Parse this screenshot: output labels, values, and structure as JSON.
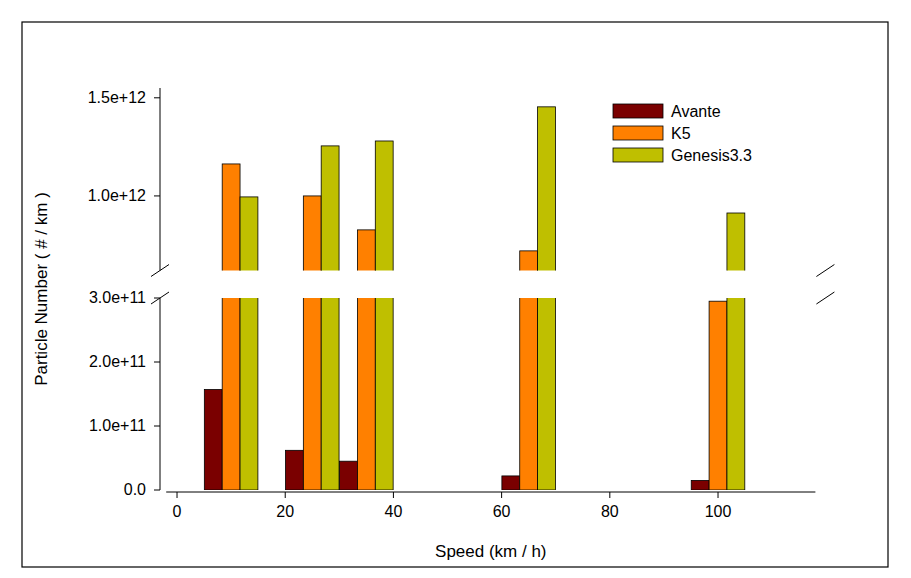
{
  "chart_data": {
    "type": "bar",
    "x_label": "Speed (km / h)",
    "y_label": "Particle Number ( # / km )",
    "x": [
      10,
      25,
      35,
      65,
      100
    ],
    "series": [
      {
        "name": "Avante",
        "color": "#7a0000",
        "values": [
          157000000000.0,
          62000000000.0,
          45000000000.0,
          22000000000.0,
          15000000000.0
        ]
      },
      {
        "name": "K5",
        "color": "#ff8000",
        "values": [
          1163000000000.0,
          1000000000000.0,
          827000000000.0,
          720000000000.0,
          295000000000.0
        ]
      },
      {
        "name": "Genesis3.3",
        "color": "#bfbf00",
        "values": [
          995000000000.0,
          1255000000000.0,
          1280000000000.0,
          1454000000000.0,
          913000000000.0
        ]
      }
    ],
    "xlim": [
      -2,
      118
    ],
    "xticks": [
      0,
      20,
      40,
      60,
      80,
      100
    ],
    "ylim": [
      0,
      1550000000000.0
    ],
    "ybreak": [
      300000000000.0,
      620000000000.0
    ],
    "yticks": [
      {
        "value": 0,
        "label": "0.0"
      },
      {
        "value": 100000000000.0,
        "label": "1.0e+11"
      },
      {
        "value": 200000000000.0,
        "label": "2.0e+11"
      },
      {
        "value": 300000000000.0,
        "label": "3.0e+11"
      },
      {
        "value": 1000000000000.0,
        "label": "1.0e+12"
      },
      {
        "value": 1500000000000.0,
        "label": "1.5e+12"
      }
    ],
    "grid": false,
    "legend": "upper right"
  }
}
